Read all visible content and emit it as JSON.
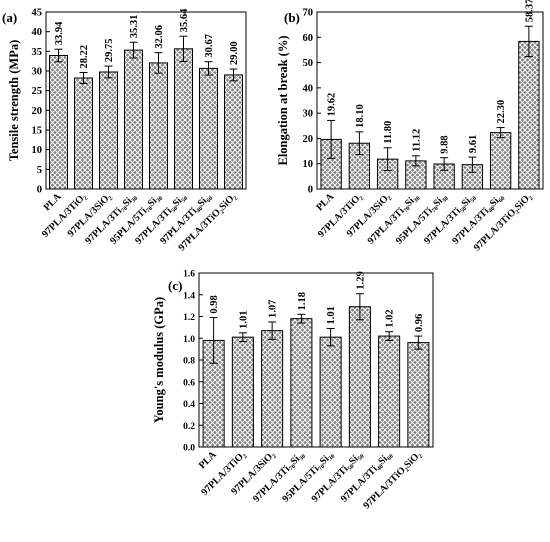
{
  "bar_color": "#808080",
  "hatch": "crosshatch",
  "chart_data": [
    {
      "id": "a",
      "panel_label": "(a)",
      "type": "bar",
      "ylabel": "Tensile strength (MPa)",
      "ylim": [
        0,
        45
      ],
      "yticks": [
        0,
        5,
        10,
        15,
        20,
        25,
        30,
        35,
        40,
        45
      ],
      "ytick_labels": [
        "0",
        "5",
        "10",
        "15",
        "20",
        "25",
        "30",
        "35",
        "40",
        "45"
      ],
      "categories": [
        "PLA",
        "97PLA/3TiO₂",
        "97PLA/3SiO₂",
        "97PLA/3Ti₇₀Si₃₀",
        "95PLA/5Ti₇₀Si₃₀",
        "97PLA/3Ti₅₀Si₅₀",
        "97PLA/3Ti₄₀Si₆₀",
        "97PLA/3TiO₂SiO₂"
      ],
      "values": [
        33.94,
        28.22,
        29.75,
        35.31,
        32.06,
        35.64,
        30.67,
        29.0
      ],
      "errors": [
        1.6,
        1.4,
        1.5,
        2.0,
        2.6,
        3.2,
        1.7,
        1.5
      ],
      "value_labels": [
        "33.94",
        "28.22",
        "29.75",
        "35.31",
        "32.06",
        "35.64",
        "30.67",
        "29.00"
      ]
    },
    {
      "id": "b",
      "panel_label": "(b)",
      "type": "bar",
      "ylabel": "Elongation at break (%)",
      "ylim": [
        0,
        70
      ],
      "yticks": [
        0,
        10,
        20,
        30,
        40,
        50,
        60,
        70
      ],
      "ytick_labels": [
        "0",
        "10",
        "20",
        "30",
        "40",
        "50",
        "60",
        "70"
      ],
      "categories": [
        "PLA",
        "97PLA/3TiO₂",
        "97PLA/3SiO₂",
        "97PLA/3Ti₇₀Si₃₀",
        "95PLA/5Ti₇₀Si₃₀",
        "97PLA/3Ti₅₀Si₅₀",
        "97PLA/3Ti₄₀Si₆₀",
        "97PLA/3TiO₂SiO₂"
      ],
      "values": [
        19.62,
        18.1,
        11.8,
        11.12,
        9.88,
        9.61,
        22.3,
        58.37
      ],
      "errors": [
        7.5,
        4.5,
        4.5,
        2.0,
        2.5,
        3.0,
        2.0,
        6.0
      ],
      "value_labels": [
        "19.62",
        "18.10",
        "11.80",
        "11.12",
        "9.88",
        "9.61",
        "22.30",
        "58.37"
      ]
    },
    {
      "id": "c",
      "panel_label": "(c)",
      "type": "bar",
      "ylabel": "Young's modulus (GPa)",
      "ylim": [
        0,
        1.6
      ],
      "yticks": [
        0,
        0.2,
        0.4,
        0.6,
        0.8,
        1.0,
        1.2,
        1.4,
        1.6
      ],
      "ytick_labels": [
        "0.0",
        "0.2",
        "0.4",
        "0.6",
        "0.8",
        "1.0",
        "1.2",
        "1.4",
        "1.6"
      ],
      "categories": [
        "PLA",
        "97PLA/3TiO₂",
        "97PLA/3SiO₂",
        "97PLA/3Ti₇₀Si₃₀",
        "95PLA/5Ti₇₀Si₃₀",
        "97PLA/3Ti₅₀Si₅₀",
        "97PLA/3Ti₄₀Si₆₀",
        "97PLA/3TiO₂SiO₂"
      ],
      "values": [
        0.98,
        1.01,
        1.07,
        1.18,
        1.01,
        1.29,
        1.02,
        0.96
      ],
      "errors": [
        0.21,
        0.04,
        0.08,
        0.04,
        0.08,
        0.12,
        0.04,
        0.06
      ],
      "value_labels": [
        "0.98",
        "1.01",
        "1.07",
        "1.18",
        "1.01",
        "1.29",
        "1.02",
        "0.96"
      ]
    }
  ]
}
